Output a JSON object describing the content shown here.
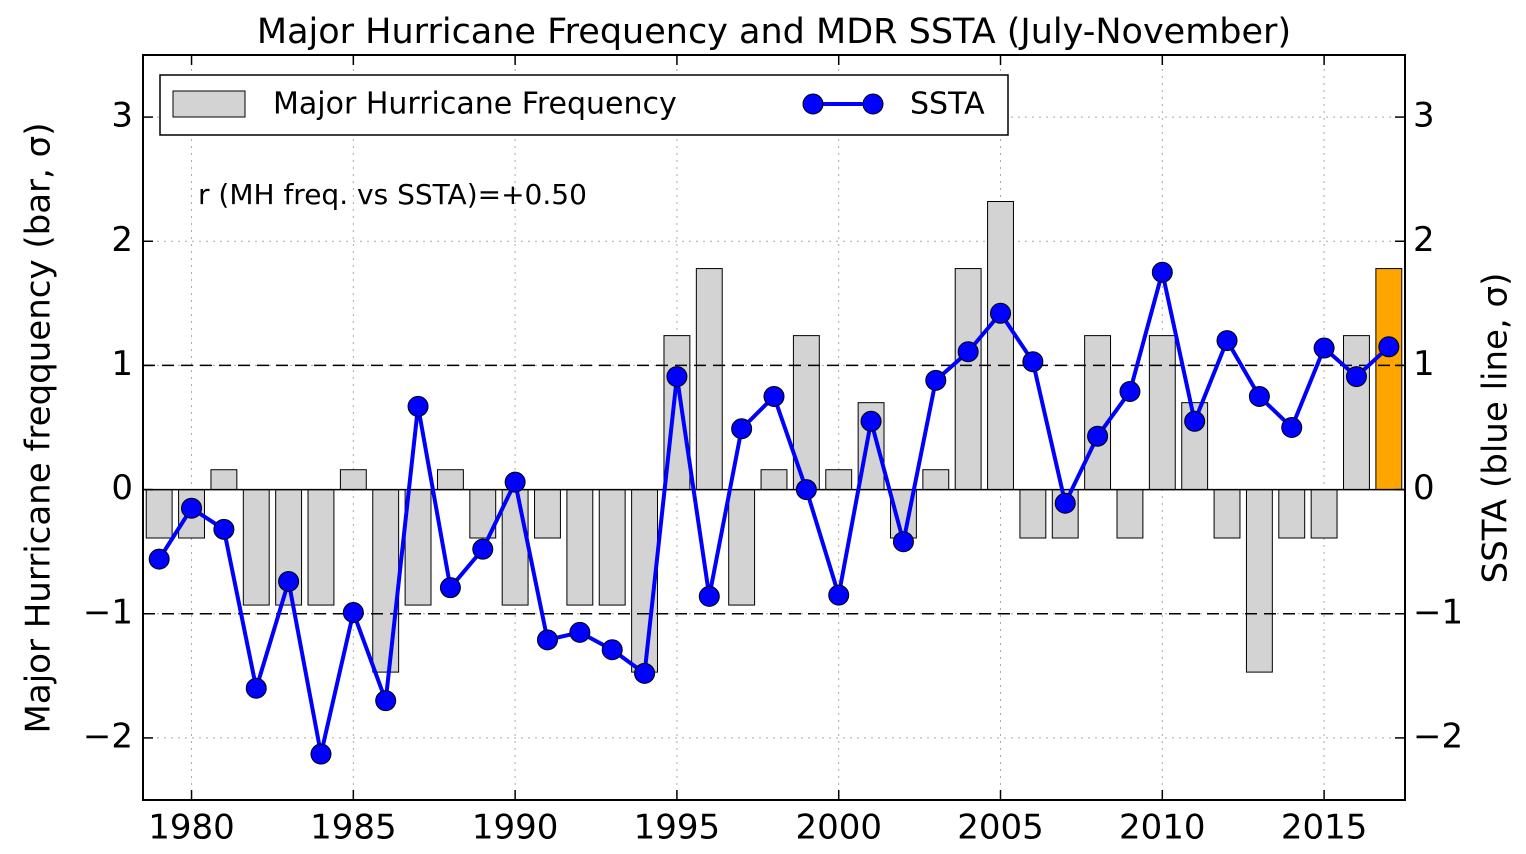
{
  "chart_data": {
    "type": "bar",
    "title": "Major Hurricane Frequency and MDR SSTA (July-November)",
    "y_label": "Major Hurricane freqquency (bar, σ)",
    "y2_label": "SSTA (blue line, σ)",
    "annotation": "r (MH freq. vs SSTA)=+0.50",
    "x": [
      1979,
      1980,
      1981,
      1982,
      1983,
      1984,
      1985,
      1986,
      1987,
      1988,
      1989,
      1990,
      1991,
      1992,
      1993,
      1994,
      1995,
      1996,
      1997,
      1998,
      1999,
      2000,
      2001,
      2002,
      2003,
      2004,
      2005,
      2006,
      2007,
      2008,
      2009,
      2010,
      2011,
      2012,
      2013,
      2014,
      2015,
      2016,
      2017
    ],
    "series": [
      {
        "name": "Major Hurricane Frequency",
        "type": "bar",
        "color": "#d3d3d3",
        "colors": [
          "#d3d3d3",
          "#d3d3d3",
          "#d3d3d3",
          "#d3d3d3",
          "#d3d3d3",
          "#d3d3d3",
          "#d3d3d3",
          "#d3d3d3",
          "#d3d3d3",
          "#d3d3d3",
          "#d3d3d3",
          "#d3d3d3",
          "#d3d3d3",
          "#d3d3d3",
          "#d3d3d3",
          "#d3d3d3",
          "#d3d3d3",
          "#d3d3d3",
          "#d3d3d3",
          "#d3d3d3",
          "#d3d3d3",
          "#d3d3d3",
          "#d3d3d3",
          "#d3d3d3",
          "#d3d3d3",
          "#d3d3d3",
          "#d3d3d3",
          "#d3d3d3",
          "#d3d3d3",
          "#d3d3d3",
          "#d3d3d3",
          "#d3d3d3",
          "#d3d3d3",
          "#d3d3d3",
          "#d3d3d3",
          "#d3d3d3",
          "#d3d3d3",
          "#d3d3d3",
          "#ffa500"
        ],
        "values": [
          -0.39,
          -0.39,
          0.16,
          -0.93,
          -0.93,
          -0.93,
          0.16,
          -1.47,
          -0.93,
          0.16,
          -0.39,
          -0.93,
          -0.39,
          -0.93,
          -0.93,
          -1.47,
          1.24,
          1.78,
          -0.93,
          0.16,
          1.24,
          0.16,
          0.7,
          -0.39,
          0.16,
          1.78,
          2.32,
          -0.39,
          -0.39,
          1.24,
          -0.39,
          1.24,
          0.7,
          -0.39,
          -1.47,
          -0.39,
          -0.39,
          1.24,
          1.78
        ]
      },
      {
        "name": "SSTA",
        "type": "line",
        "axis": "y2",
        "color": "#0000ff",
        "values": [
          -0.56,
          -0.15,
          -0.32,
          -1.6,
          -0.74,
          -2.13,
          -0.99,
          -1.7,
          0.67,
          -0.79,
          -0.48,
          0.06,
          -1.21,
          -1.15,
          -1.29,
          -1.48,
          0.91,
          -0.86,
          0.49,
          0.75,
          0.0,
          -0.85,
          0.55,
          -0.42,
          0.88,
          1.11,
          1.42,
          1.03,
          -0.11,
          0.43,
          0.79,
          1.75,
          0.55,
          1.2,
          0.75,
          0.5,
          1.14,
          0.91,
          1.15
        ]
      }
    ],
    "xlim": [
      1978.5,
      2017.5
    ],
    "xticks": [
      1980,
      1985,
      1990,
      1995,
      2000,
      2005,
      2010,
      2015
    ],
    "ylim": [
      -2.5,
      3.5
    ],
    "yticks": [
      {
        "value": -2,
        "label": "−2"
      },
      {
        "value": -1,
        "label": "−1"
      },
      0,
      1,
      2,
      3
    ],
    "y2lim": [
      -2.5,
      3.5
    ],
    "y2ticks": [
      {
        "value": -2,
        "label": "−2"
      },
      {
        "value": -1,
        "label": "−1"
      },
      0,
      1,
      2,
      3
    ],
    "reference_lines": [
      1,
      -1
    ],
    "grid": true,
    "legend": "upper left"
  }
}
